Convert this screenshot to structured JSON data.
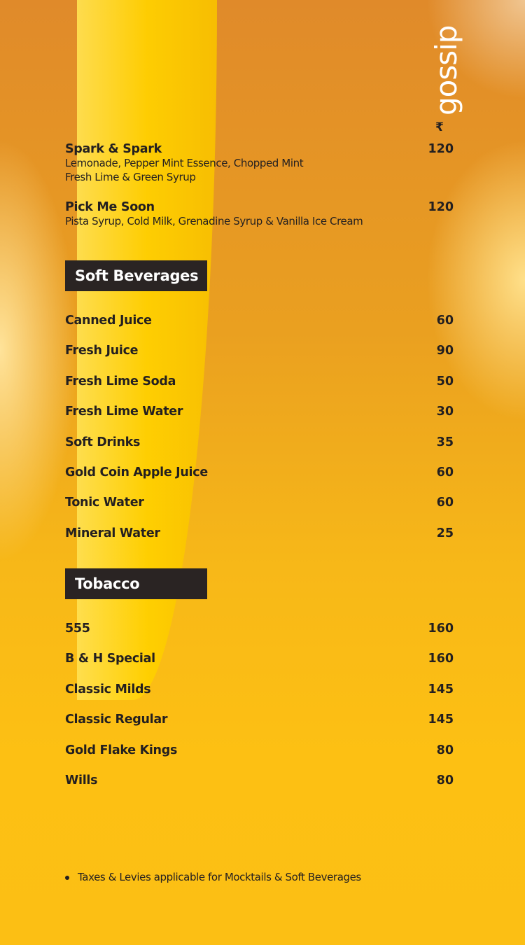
{
  "logo": "gossip",
  "currency": "₹",
  "mocktails": [
    {
      "name": "Spark & Spark",
      "price": "120",
      "desc": [
        "Lemonade, Pepper Mint Essence, Chopped Mint",
        "Fresh Lime & Green Syrup"
      ]
    },
    {
      "name": "Pick Me Soon",
      "price": "120",
      "desc": [
        "Pista Syrup, Cold Milk, Grenadine Syrup & Vanilla Ice Cream"
      ]
    }
  ],
  "soft_beverages": {
    "title": "Soft Beverages",
    "items": [
      {
        "name": "Canned Juice",
        "price": "60"
      },
      {
        "name": "Fresh Juice",
        "price": "90"
      },
      {
        "name": "Fresh Lime Soda",
        "price": "50"
      },
      {
        "name": "Fresh Lime Water",
        "price": "30"
      },
      {
        "name": "Soft Drinks",
        "price": "35"
      },
      {
        "name": "Gold Coin Apple Juice",
        "price": "60"
      },
      {
        "name": "Tonic Water",
        "price": "60"
      },
      {
        "name": "Mineral Water",
        "price": "25"
      }
    ]
  },
  "tobacco": {
    "title": "Tobacco",
    "items": [
      {
        "name": "555",
        "price": "160"
      },
      {
        "name": "B & H Special",
        "price": "160"
      },
      {
        "name": "Classic Milds",
        "price": "145"
      },
      {
        "name": "Classic Regular",
        "price": "145"
      },
      {
        "name": "Gold Flake Kings",
        "price": "80"
      },
      {
        "name": "Wills",
        "price": "80"
      }
    ]
  },
  "note": "Taxes & Levies applicable for Mocktails & Soft Beverages"
}
